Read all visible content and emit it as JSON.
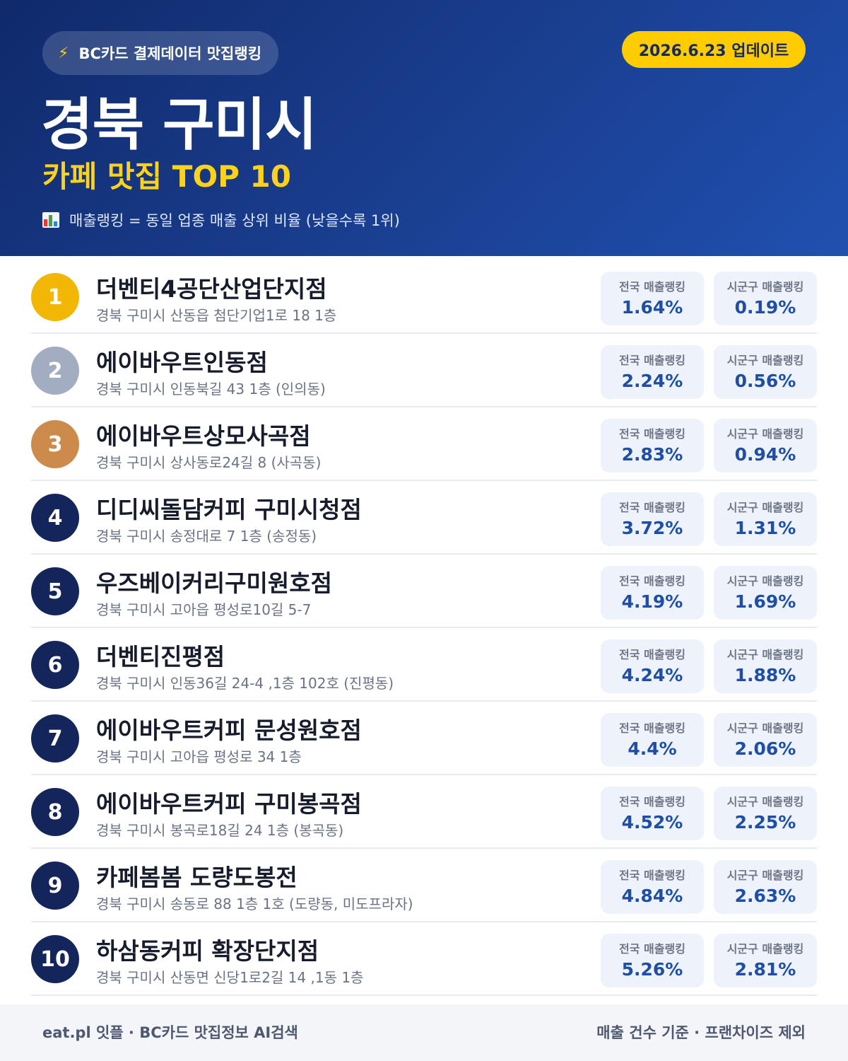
{
  "header": {
    "badge_icon": "lightning-icon",
    "badge_label": "BC카드 결제데이터 맛집랭킹",
    "update_label": "2026.6.23 업데이트",
    "title": "경북 구미시",
    "subtitle": "카페 맛집 TOP 10",
    "note_icon": "bar-chart-icon",
    "note": "매출랭킹 = 동일 업종 매출 상위 비율 (낮을수록 1위)"
  },
  "stat_labels": {
    "national": "전국 매출랭킹",
    "district": "시군구 매출랭킹"
  },
  "items": [
    {
      "rank": "1",
      "name": "더벤티4공단산업단지점",
      "address": "경북 구미시 산동읍 첨단기업1로 18 1층",
      "national": "1.64%",
      "district": "0.19%"
    },
    {
      "rank": "2",
      "name": "에이바우트인동점",
      "address": "경북 구미시 인동북길 43 1층 (인의동)",
      "national": "2.24%",
      "district": "0.56%"
    },
    {
      "rank": "3",
      "name": "에이바우트상모사곡점",
      "address": "경북 구미시 상사동로24길 8 (사곡동)",
      "national": "2.83%",
      "district": "0.94%"
    },
    {
      "rank": "4",
      "name": "디디씨돌담커피 구미시청점",
      "address": "경북 구미시 송정대로 7 1층 (송정동)",
      "national": "3.72%",
      "district": "1.31%"
    },
    {
      "rank": "5",
      "name": "우즈베이커리구미원호점",
      "address": "경북 구미시 고아읍 평성로10길 5-7",
      "national": "4.19%",
      "district": "1.69%"
    },
    {
      "rank": "6",
      "name": "더벤티진평점",
      "address": "경북 구미시 인동36길 24-4 ,1층 102호 (진평동)",
      "national": "4.24%",
      "district": "1.88%"
    },
    {
      "rank": "7",
      "name": "에이바우트커피 문성원호점",
      "address": "경북 구미시 고아읍 평성로 34 1층",
      "national": "4.4%",
      "district": "2.06%"
    },
    {
      "rank": "8",
      "name": "에이바우트커피 구미봉곡점",
      "address": "경북 구미시 봉곡로18길 24 1층 (봉곡동)",
      "national": "4.52%",
      "district": "2.25%"
    },
    {
      "rank": "9",
      "name": "카페봄봄 도량도봉전",
      "address": "경북 구미시 송동로 88 1층 1호 (도량동, 미도프라자)",
      "national": "4.84%",
      "district": "2.63%"
    },
    {
      "rank": "10",
      "name": "하삼동커피 확장단지점",
      "address": "경북 구미시 산동면 신당1로2길 14 ,1동 1층",
      "national": "5.26%",
      "district": "2.81%"
    }
  ],
  "colors": {
    "header_start": "#102a6b",
    "header_end": "#2050b0",
    "accent_yellow": "#ffcc00",
    "rank_gold": "#f2b705",
    "rank_silver": "#a2adc1",
    "rank_bronze": "#cc8a4b",
    "rank_default": "#13255a",
    "stat_value": "#1e4ea8"
  },
  "footer": {
    "left": "eat.pl 잇플 · BC카드 맛집정보 AI검색",
    "right": "매출 건수 기준 · 프랜차이즈 제외"
  }
}
